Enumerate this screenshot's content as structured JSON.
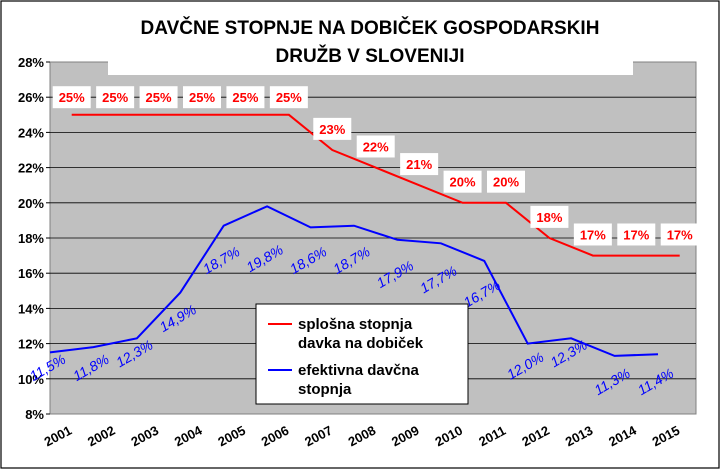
{
  "chart_data": {
    "type": "line",
    "title": [
      "DAVČNE STOPNJE NA DOBIČEK GOSPODARSKIH",
      "DRUŽB V SLOVENIJI"
    ],
    "xlabel": "",
    "ylabel": "",
    "ylim": [
      8,
      28
    ],
    "y_ticks": [
      "8%",
      "10%",
      "12%",
      "14%",
      "16%",
      "18%",
      "20%",
      "22%",
      "24%",
      "26%",
      "28%"
    ],
    "categories": [
      "2001",
      "2002",
      "2003",
      "2004",
      "2005",
      "2006",
      "2007",
      "2008",
      "2009",
      "2010",
      "2011",
      "2012",
      "2013",
      "2014",
      "2015"
    ],
    "grid": true,
    "legend_position": "center",
    "series": [
      {
        "name": "splošna stopnja davka na dobiček",
        "legend_lines": [
          "splošna stopnja",
          "davka na dobiček"
        ],
        "color": "#ff0000",
        "x": [
          2001.5,
          2006.5,
          2007.5,
          2008.5,
          2009.5,
          2010.5,
          2011.5,
          2012.5,
          2013.5,
          2015.5
        ],
        "y": [
          25,
          25,
          23,
          22,
          21,
          20,
          20,
          18,
          17,
          17
        ],
        "labels": [
          "25%",
          "25%",
          "25%",
          "25%",
          "25%",
          "25%",
          "23%",
          "22%",
          "21%",
          "20%",
          "20%",
          "18%",
          "17%",
          "17%",
          "17%"
        ],
        "label_x": [
          2001.5,
          2002.5,
          2003.5,
          2004.5,
          2005.5,
          2006.5,
          2007.5,
          2008.5,
          2009.5,
          2010.5,
          2011.5,
          2012.5,
          2013.5,
          2014.5,
          2015.5
        ],
        "label_y": [
          26,
          26,
          26,
          26,
          26,
          26,
          24.2,
          23.2,
          22.2,
          21.2,
          21.2,
          19.2,
          18.2,
          18.2,
          18.2
        ]
      },
      {
        "name": "efektivna davčna stopnja",
        "legend_lines": [
          "efektivna davčna",
          "stopnja"
        ],
        "color": "#0000ff",
        "x": [
          2001,
          2002,
          2003,
          2004,
          2005,
          2006,
          2007,
          2008,
          2009,
          2010,
          2011,
          2012,
          2013,
          2014,
          2015
        ],
        "y": [
          11.5,
          11.8,
          12.3,
          14.9,
          18.7,
          19.8,
          18.6,
          18.7,
          17.9,
          17.7,
          16.7,
          12.0,
          12.3,
          11.3,
          11.4
        ],
        "labels": [
          "11,5%",
          "11,8%",
          "12,3%",
          "14,9%",
          "18,7%",
          "19,8%",
          "18,6%",
          "18,7%",
          "17,9%",
          "17,7%",
          "16,7%",
          "12,0%",
          "12,3%",
          "11,3%",
          "11,4%"
        ],
        "label_x": [
          2001,
          2002,
          2003,
          2004,
          2005,
          2006,
          2007,
          2008,
          2009,
          2010,
          2011,
          2012,
          2013,
          2014,
          2015
        ],
        "label_y": [
          10.4,
          10.4,
          11.2,
          13.2,
          16.5,
          16.6,
          16.5,
          16.5,
          15.7,
          15.4,
          14.6,
          10.5,
          11.2,
          9.6,
          9.6
        ]
      }
    ]
  }
}
